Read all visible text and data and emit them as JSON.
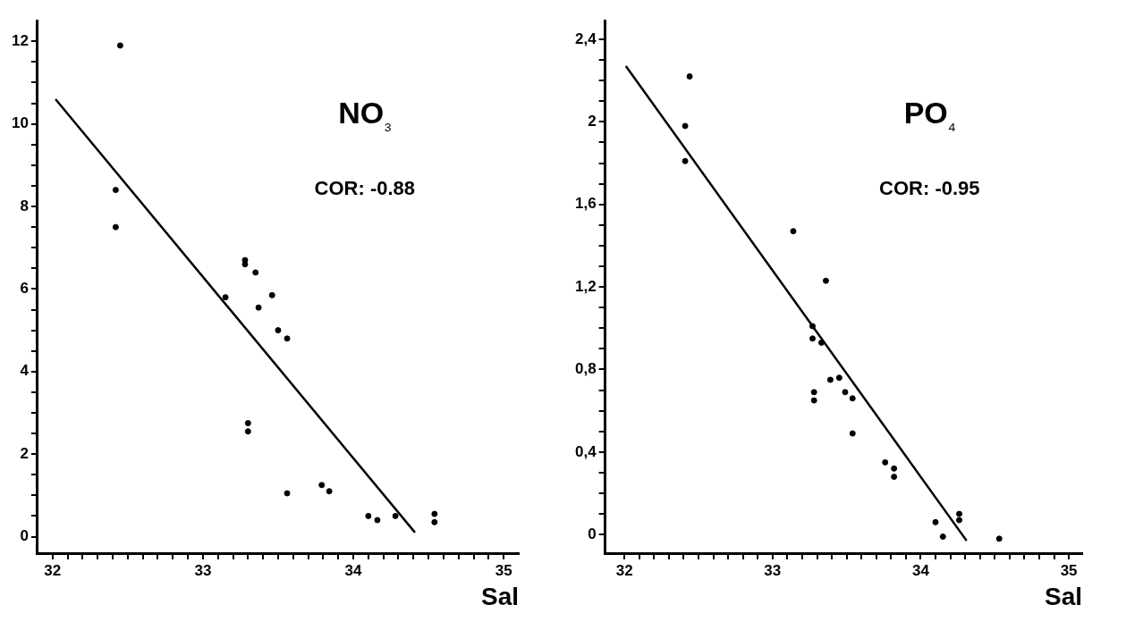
{
  "chart_data": [
    {
      "type": "scatter",
      "title": "NO₃",
      "xlabel": "Sal",
      "annotations": [
        "COR: -0.88"
      ],
      "grid": false,
      "xlim": [
        31.9,
        35.1
      ],
      "ylim": [
        -0.4,
        12.5
      ],
      "xticks": [
        32,
        {
          "value": 32.1,
          "label": null
        },
        {
          "value": 32.2,
          "label": null
        },
        {
          "value": 32.3,
          "label": null
        },
        {
          "value": 32.4,
          "label": null
        },
        {
          "value": 32.5,
          "label": null
        },
        {
          "value": 32.6,
          "label": null
        },
        {
          "value": 32.7,
          "label": null
        },
        {
          "value": 32.8,
          "label": null
        },
        {
          "value": 32.9,
          "label": null
        },
        33,
        {
          "value": 33.1,
          "label": null
        },
        {
          "value": 33.2,
          "label": null
        },
        {
          "value": 33.3,
          "label": null
        },
        {
          "value": 33.4,
          "label": null
        },
        {
          "value": 33.5,
          "label": null
        },
        {
          "value": 33.6,
          "label": null
        },
        {
          "value": 33.7,
          "label": null
        },
        {
          "value": 33.8,
          "label": null
        },
        {
          "value": 33.9,
          "label": null
        },
        34,
        {
          "value": 34.1,
          "label": null
        },
        {
          "value": 34.2,
          "label": null
        },
        {
          "value": 34.3,
          "label": null
        },
        {
          "value": 34.4,
          "label": null
        },
        {
          "value": 34.5,
          "label": null
        },
        {
          "value": 34.6,
          "label": null
        },
        {
          "value": 34.7,
          "label": null
        },
        {
          "value": 34.8,
          "label": null
        },
        {
          "value": 34.9,
          "label": null
        },
        35
      ],
      "yticks": [
        0,
        {
          "value": 0.5,
          "label": null
        },
        {
          "value": 1,
          "label": null
        },
        {
          "value": 1.5,
          "label": null
        },
        2,
        {
          "value": 2.5,
          "label": null
        },
        {
          "value": 3,
          "label": null
        },
        {
          "value": 3.5,
          "label": null
        },
        4,
        {
          "value": 4.5,
          "label": null
        },
        {
          "value": 5,
          "label": null
        },
        {
          "value": 5.5,
          "label": null
        },
        6,
        {
          "value": 6.5,
          "label": null
        },
        {
          "value": 7,
          "label": null
        },
        {
          "value": 7.5,
          "label": null
        },
        8,
        {
          "value": 8.5,
          "label": null
        },
        {
          "value": 9,
          "label": null
        },
        {
          "value": 9.5,
          "label": null
        },
        10,
        {
          "value": 10.5,
          "label": null
        },
        {
          "value": 11,
          "label": null
        },
        {
          "value": 11.5,
          "label": null
        },
        12
      ],
      "series": [
        {
          "marker": "circle",
          "color": "#000000",
          "x": [
            32.45,
            32.42,
            32.42,
            33.15,
            33.28,
            33.28,
            33.35,
            33.37,
            33.46,
            33.5,
            33.56,
            33.3,
            33.3,
            33.56,
            33.79,
            33.84,
            34.1,
            34.16,
            34.28,
            34.54,
            34.54
          ],
          "values": [
            11.9,
            8.4,
            7.5,
            5.8,
            6.7,
            6.6,
            6.4,
            5.55,
            5.85,
            5.0,
            4.8,
            2.75,
            2.55,
            1.05,
            1.25,
            1.1,
            0.5,
            0.4,
            0.5,
            0.55,
            0.35
          ]
        },
        {
          "type": "line",
          "marker": "none",
          "color": "#000000",
          "x": [
            32.02,
            34.41
          ],
          "values": [
            10.6,
            0.1
          ]
        }
      ]
    },
    {
      "type": "scatter",
      "title": "PO₄",
      "xlabel": "Sal",
      "annotations": [
        "COR: -0.95"
      ],
      "grid": false,
      "xlim": [
        31.87,
        35.09
      ],
      "ylim": [
        -0.09,
        2.49
      ],
      "xticks": [
        32,
        {
          "value": 32.1,
          "label": null
        },
        {
          "value": 32.2,
          "label": null
        },
        {
          "value": 32.3,
          "label": null
        },
        {
          "value": 32.4,
          "label": null
        },
        {
          "value": 32.5,
          "label": null
        },
        {
          "value": 32.6,
          "label": null
        },
        {
          "value": 32.7,
          "label": null
        },
        {
          "value": 32.8,
          "label": null
        },
        {
          "value": 32.9,
          "label": null
        },
        33,
        {
          "value": 33.1,
          "label": null
        },
        {
          "value": 33.2,
          "label": null
        },
        {
          "value": 33.3,
          "label": null
        },
        {
          "value": 33.4,
          "label": null
        },
        {
          "value": 33.5,
          "label": null
        },
        {
          "value": 33.6,
          "label": null
        },
        {
          "value": 33.7,
          "label": null
        },
        {
          "value": 33.8,
          "label": null
        },
        {
          "value": 33.9,
          "label": null
        },
        34,
        {
          "value": 34.1,
          "label": null
        },
        {
          "value": 34.2,
          "label": null
        },
        {
          "value": 34.3,
          "label": null
        },
        {
          "value": 34.4,
          "label": null
        },
        {
          "value": 34.5,
          "label": null
        },
        {
          "value": 34.6,
          "label": null
        },
        {
          "value": 34.7,
          "label": null
        },
        {
          "value": 34.8,
          "label": null
        },
        {
          "value": 34.9,
          "label": null
        },
        35
      ],
      "yticks": [
        0,
        {
          "value": 0.1,
          "label": null
        },
        {
          "value": 0.2,
          "label": null
        },
        {
          "value": 0.3,
          "label": null
        },
        {
          "value": 0.4,
          "label": "0,4"
        },
        {
          "value": 0.5,
          "label": null
        },
        {
          "value": 0.6,
          "label": null
        },
        {
          "value": 0.7,
          "label": null
        },
        {
          "value": 0.8,
          "label": "0,8"
        },
        {
          "value": 0.9,
          "label": null
        },
        {
          "value": 1,
          "label": null
        },
        {
          "value": 1.1,
          "label": null
        },
        {
          "value": 1.2,
          "label": "1,2"
        },
        {
          "value": 1.3,
          "label": null
        },
        {
          "value": 1.4,
          "label": null
        },
        {
          "value": 1.5,
          "label": null
        },
        {
          "value": 1.6,
          "label": "1,6"
        },
        {
          "value": 1.7,
          "label": null
        },
        {
          "value": 1.8,
          "label": null
        },
        {
          "value": 1.9,
          "label": null
        },
        2,
        {
          "value": 2.1,
          "label": null
        },
        {
          "value": 2.2,
          "label": null
        },
        {
          "value": 2.3,
          "label": null
        },
        {
          "value": 2.4,
          "label": "2,4"
        }
      ],
      "series": [
        {
          "marker": "circle",
          "color": "#000000",
          "x": [
            32.44,
            32.41,
            32.41,
            33.14,
            33.36,
            33.27,
            33.27,
            33.33,
            33.28,
            33.28,
            33.39,
            33.45,
            33.49,
            33.54,
            33.54,
            33.76,
            33.82,
            33.82,
            34.1,
            34.15,
            34.26,
            34.26,
            34.53
          ],
          "values": [
            2.22,
            1.98,
            1.81,
            1.47,
            1.23,
            1.01,
            0.95,
            0.93,
            0.69,
            0.65,
            0.75,
            0.76,
            0.69,
            0.66,
            0.49,
            0.35,
            0.32,
            0.28,
            0.06,
            -0.01,
            0.1,
            0.07,
            -0.02
          ]
        },
        {
          "type": "line",
          "marker": "none",
          "color": "#000000",
          "x": [
            32.01,
            34.31
          ],
          "values": [
            2.27,
            -0.03
          ]
        }
      ]
    }
  ]
}
